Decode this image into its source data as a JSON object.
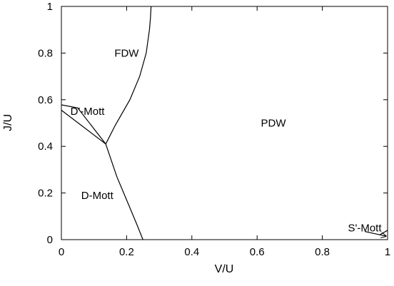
{
  "chart_data": {
    "type": "line",
    "title": "",
    "xlabel": "V/U",
    "ylabel": "J/U",
    "xlim": [
      0,
      1
    ],
    "ylim": [
      0,
      1
    ],
    "grid": false,
    "xticks": [
      "0",
      "0.2",
      "0.4",
      "0.6",
      "0.8",
      "1"
    ],
    "yticks": [
      "0",
      "0.2",
      "0.4",
      "0.6",
      "0.8",
      "1"
    ],
    "phase_labels": [
      {
        "text": "FDW",
        "x": 0.2,
        "y": 0.8
      },
      {
        "text": "D'-Mott",
        "x": 0.08,
        "y": 0.55
      },
      {
        "text": "PDW",
        "x": 0.65,
        "y": 0.5
      },
      {
        "text": "D-Mott",
        "x": 0.11,
        "y": 0.19
      },
      {
        "text": "S'-Mott",
        "x": 0.93,
        "y": 0.05
      }
    ],
    "series": [
      {
        "x": [
          0.136,
          0.165,
          0.21,
          0.24,
          0.26,
          0.27,
          0.273,
          0.275
        ],
        "y": [
          0.41,
          0.49,
          0.6,
          0.7,
          0.8,
          0.9,
          0.95,
          1.0
        ]
      },
      {
        "x": [
          0.136,
          0.17,
          0.2,
          0.23,
          0.25
        ],
        "y": [
          0.41,
          0.27,
          0.17,
          0.07,
          0.0
        ]
      },
      {
        "x": [
          0.0,
          0.136
        ],
        "y": [
          0.555,
          0.41
        ]
      },
      {
        "x": [
          0.0,
          0.05,
          0.136
        ],
        "y": [
          0.578,
          0.565,
          0.41
        ]
      },
      {
        "x": [
          0.975,
          1.0
        ],
        "y": [
          0.02,
          0.04
        ]
      }
    ],
    "arrow": {
      "from": [
        0.93,
        0.035
      ],
      "to": [
        0.995,
        0.015
      ]
    }
  }
}
